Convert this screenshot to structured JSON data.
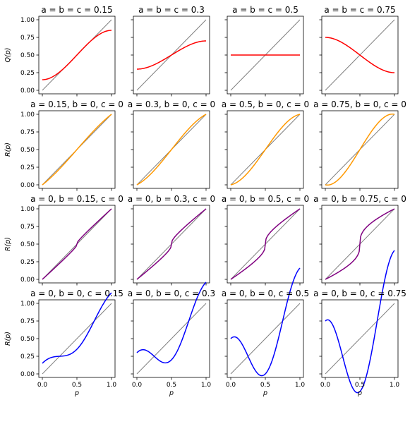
{
  "chart_data": {
    "type": "line",
    "layout": {
      "rows": 4,
      "cols": 4,
      "sharex": true,
      "sharey": true
    },
    "xlim": [
      0,
      1
    ],
    "ylim": [
      0,
      1
    ],
    "xticks": [
      "0.0",
      "0.5",
      "1.0"
    ],
    "yticks": [
      "0.00",
      "0.25",
      "0.50",
      "0.75",
      "1.00"
    ],
    "xlabel": "p",
    "row_ylabels": [
      "Q(p)",
      "R(p)",
      "R(p)",
      "R(p)"
    ],
    "reference_line": {
      "x": [
        0,
        1
      ],
      "y": [
        0,
        1
      ],
      "color": "#808080"
    },
    "panels": [
      {
        "title": "a = b = c = 0.15",
        "a": 0.15,
        "b": 0.15,
        "c": 0.15,
        "color": "#ff0000"
      },
      {
        "title": "a = b = c = 0.3",
        "a": 0.3,
        "b": 0.3,
        "c": 0.3,
        "color": "#ff0000"
      },
      {
        "title": "a = b = c = 0.5",
        "a": 0.5,
        "b": 0.5,
        "c": 0.5,
        "color": "#ff0000"
      },
      {
        "title": "a = b = c = 0.75",
        "a": 0.75,
        "b": 0.75,
        "c": 0.75,
        "color": "#ff0000"
      },
      {
        "title": "a = 0.15, b = 0, c = 0",
        "a": 0.15,
        "b": 0,
        "c": 0,
        "color": "#ff9900"
      },
      {
        "title": "a = 0.3, b = 0, c = 0",
        "a": 0.3,
        "b": 0,
        "c": 0,
        "color": "#ff9900"
      },
      {
        "title": "a = 0.5, b = 0, c = 0",
        "a": 0.5,
        "b": 0,
        "c": 0,
        "color": "#ff9900"
      },
      {
        "title": "a = 0.75, b = 0, c = 0",
        "a": 0.75,
        "b": 0,
        "c": 0,
        "color": "#ff9900"
      },
      {
        "title": "a = 0, b = 0.15, c = 0",
        "a": 0,
        "b": 0.15,
        "c": 0,
        "color": "#800080"
      },
      {
        "title": "a = 0, b = 0.3, c = 0",
        "a": 0,
        "b": 0.3,
        "c": 0,
        "color": "#800080"
      },
      {
        "title": "a = 0, b = 0.5, c = 0",
        "a": 0,
        "b": 0.5,
        "c": 0,
        "color": "#800080"
      },
      {
        "title": "a = 0, b = 0.75, c = 0",
        "a": 0,
        "b": 0.75,
        "c": 0,
        "color": "#800080"
      },
      {
        "title": "a = 0, b = 0, c = 0.15",
        "a": 0,
        "b": 0,
        "c": 0.15,
        "color": "#0000ff"
      },
      {
        "title": "a = 0, b = 0, c = 0.3",
        "a": 0,
        "b": 0,
        "c": 0.3,
        "color": "#0000ff"
      },
      {
        "title": "a = 0, b = 0, c = 0.5",
        "a": 0,
        "b": 0,
        "c": 0.5,
        "color": "#0000ff"
      },
      {
        "title": "a = 0, b = 0, c = 0.75",
        "a": 0,
        "b": 0,
        "c": 0.75,
        "color": "#0000ff"
      }
    ]
  }
}
